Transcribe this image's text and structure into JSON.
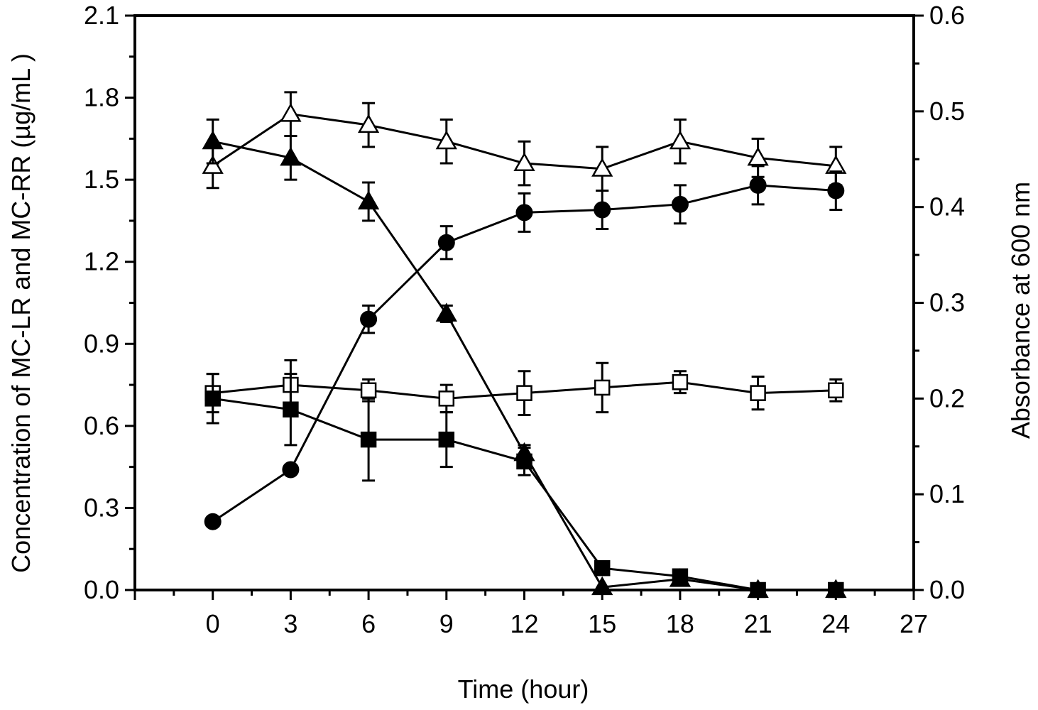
{
  "chart_data": {
    "type": "line",
    "title": "",
    "xlabel": "Time (hour)",
    "ylabel": "Concentration of MC-LR and MC-RR (µg/mL )",
    "y2label": "Absorbance at 600 nm",
    "xlim": [
      -3,
      27
    ],
    "ylim": [
      0,
      2.1
    ],
    "y2lim": [
      0,
      0.6
    ],
    "xticks": [
      "0",
      "3",
      "6",
      "9",
      "12",
      "15",
      "18",
      "21",
      "24",
      "27"
    ],
    "yticks": [
      "0.0",
      "0.3",
      "0.6",
      "0.9",
      "1.2",
      "1.5",
      "1.8",
      "2.1"
    ],
    "y2ticks": [
      "0.0",
      "0.1",
      "0.2",
      "0.3",
      "0.4",
      "0.5",
      "0.6"
    ],
    "series": [
      {
        "name": "open triangles",
        "marker": "triangle-open",
        "axis": "left",
        "x": [
          0,
          3,
          6,
          9,
          12,
          15,
          18,
          21,
          24
        ],
        "y": [
          1.55,
          1.74,
          1.7,
          1.64,
          1.56,
          1.54,
          1.64,
          1.58,
          1.55
        ],
        "err": [
          0.08,
          0.08,
          0.08,
          0.08,
          0.08,
          0.08,
          0.08,
          0.07,
          0.07
        ]
      },
      {
        "name": "filled triangles",
        "marker": "triangle-filled",
        "axis": "left",
        "x": [
          0,
          3,
          6,
          9,
          12,
          15,
          18,
          21,
          24
        ],
        "y": [
          1.64,
          1.58,
          1.42,
          1.01,
          0.5,
          0.01,
          0.04,
          0.0,
          0.0
        ],
        "err": [
          0.08,
          0.08,
          0.07,
          0.03,
          0.03,
          0.0,
          0.0,
          0.0,
          0.0
        ]
      },
      {
        "name": "filled circles",
        "marker": "circle-filled",
        "axis": "left",
        "x": [
          0,
          3,
          6,
          9,
          12,
          15,
          18,
          21,
          24
        ],
        "y": [
          0.25,
          0.44,
          0.99,
          1.27,
          1.38,
          1.39,
          1.41,
          1.48,
          1.46
        ],
        "err": [
          0.0,
          0.0,
          0.05,
          0.06,
          0.07,
          0.07,
          0.07,
          0.07,
          0.07
        ]
      },
      {
        "name": "open squares",
        "marker": "square-open",
        "axis": "left",
        "x": [
          0,
          3,
          6,
          9,
          12,
          15,
          18,
          21,
          24
        ],
        "y": [
          0.72,
          0.75,
          0.73,
          0.7,
          0.72,
          0.74,
          0.76,
          0.72,
          0.73
        ],
        "err": [
          0.07,
          0.09,
          0.04,
          0.05,
          0.08,
          0.09,
          0.04,
          0.06,
          0.04
        ]
      },
      {
        "name": "filled squares",
        "marker": "square-filled",
        "axis": "left",
        "x": [
          0,
          3,
          6,
          9,
          12,
          15,
          18,
          21,
          24
        ],
        "y": [
          0.7,
          0.66,
          0.55,
          0.55,
          0.47,
          0.08,
          0.05,
          0.0,
          0.0
        ],
        "err": [
          0.09,
          0.13,
          0.15,
          0.1,
          0.05,
          0.0,
          0.0,
          0.0,
          0.0
        ]
      }
    ]
  }
}
